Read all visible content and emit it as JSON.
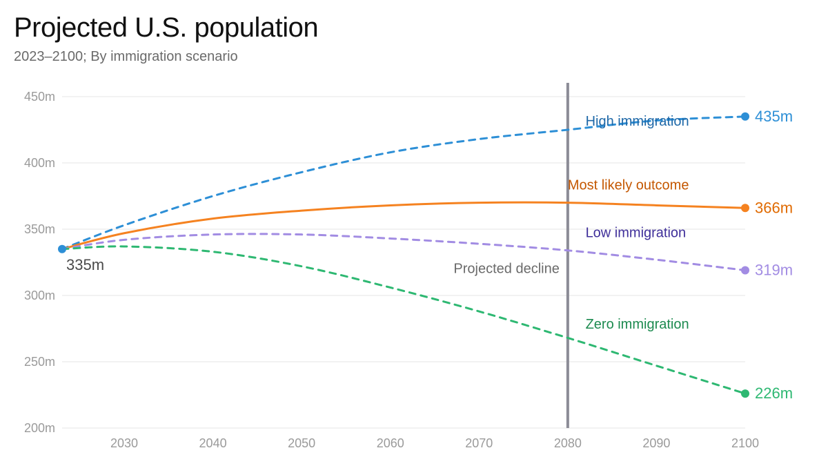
{
  "title": "Projected U.S. population",
  "subtitle": "2023–2100; By immigration scenario",
  "chart": {
    "type": "line",
    "background_color": "#ffffff",
    "grid_color": "#e5e5e5",
    "axis_text_color": "#9a9a9a",
    "axis_fontsize": 18,
    "label_fontsize": 20,
    "marker_radius": 6,
    "line_width": 3,
    "dash_pattern": "9 8",
    "xlim": [
      2023,
      2100
    ],
    "ylim": [
      200,
      450
    ],
    "y_ticks": [
      200,
      250,
      300,
      350,
      400,
      450
    ],
    "y_tick_labels": [
      "200m",
      "250m",
      "300m",
      "350m",
      "400m",
      "450m"
    ],
    "x_ticks": [
      2030,
      2040,
      2050,
      2060,
      2070,
      2080,
      2090,
      2100
    ],
    "x_tick_labels": [
      "2030",
      "2040",
      "2050",
      "2060",
      "2070",
      "2080",
      "2090",
      "2100"
    ],
    "reference_line": {
      "x": 2080,
      "label": "Projected decline",
      "color": "#8c8c96",
      "width": 4,
      "label_color": "#6a6a6a"
    },
    "start_point": {
      "year": 2023,
      "value": 335,
      "label": "335m",
      "dot_color": "#2d8fd6",
      "label_color": "#4a4a4a"
    },
    "series": [
      {
        "name": "High immigration",
        "color": "#2d8fd6",
        "dashed": true,
        "end_label": "435m",
        "end_label_color": "#2d8fd6",
        "series_label_color": "#1e68a8",
        "label_at_x": 2082,
        "label_at_y": 428,
        "points": [
          {
            "x": 2023,
            "y": 335
          },
          {
            "x": 2030,
            "y": 353
          },
          {
            "x": 2040,
            "y": 375
          },
          {
            "x": 2050,
            "y": 393
          },
          {
            "x": 2060,
            "y": 408
          },
          {
            "x": 2070,
            "y": 418
          },
          {
            "x": 2080,
            "y": 425
          },
          {
            "x": 2090,
            "y": 432
          },
          {
            "x": 2100,
            "y": 435
          }
        ]
      },
      {
        "name": "Most likely outcome",
        "color": "#f58220",
        "dashed": false,
        "end_label": "366m",
        "end_label_color": "#e06a00",
        "series_label_color": "#c45700",
        "label_at_x": 2080,
        "label_at_y": 380,
        "points": [
          {
            "x": 2023,
            "y": 335
          },
          {
            "x": 2030,
            "y": 347
          },
          {
            "x": 2040,
            "y": 358
          },
          {
            "x": 2050,
            "y": 364
          },
          {
            "x": 2060,
            "y": 368
          },
          {
            "x": 2070,
            "y": 370
          },
          {
            "x": 2080,
            "y": 370
          },
          {
            "x": 2090,
            "y": 368
          },
          {
            "x": 2100,
            "y": 366
          }
        ]
      },
      {
        "name": "Low immigration",
        "color": "#a28ce3",
        "dashed": true,
        "end_label": "319m",
        "end_label_color": "#a28ce3",
        "series_label_color": "#3f2f9a",
        "label_at_x": 2082,
        "label_at_y": 344,
        "points": [
          {
            "x": 2023,
            "y": 335
          },
          {
            "x": 2030,
            "y": 342
          },
          {
            "x": 2040,
            "y": 346
          },
          {
            "x": 2050,
            "y": 346
          },
          {
            "x": 2060,
            "y": 343
          },
          {
            "x": 2070,
            "y": 339
          },
          {
            "x": 2080,
            "y": 334
          },
          {
            "x": 2090,
            "y": 327
          },
          {
            "x": 2100,
            "y": 319
          }
        ]
      },
      {
        "name": "Zero immigration",
        "color": "#2eb872",
        "dashed": true,
        "end_label": "226m",
        "end_label_color": "#2eb872",
        "series_label_color": "#1c8a4f",
        "label_at_x": 2082,
        "label_at_y": 275,
        "points": [
          {
            "x": 2023,
            "y": 335
          },
          {
            "x": 2030,
            "y": 337
          },
          {
            "x": 2040,
            "y": 333
          },
          {
            "x": 2050,
            "y": 322
          },
          {
            "x": 2060,
            "y": 306
          },
          {
            "x": 2070,
            "y": 288
          },
          {
            "x": 2080,
            "y": 268
          },
          {
            "x": 2090,
            "y": 247
          },
          {
            "x": 2100,
            "y": 226
          }
        ]
      }
    ]
  }
}
